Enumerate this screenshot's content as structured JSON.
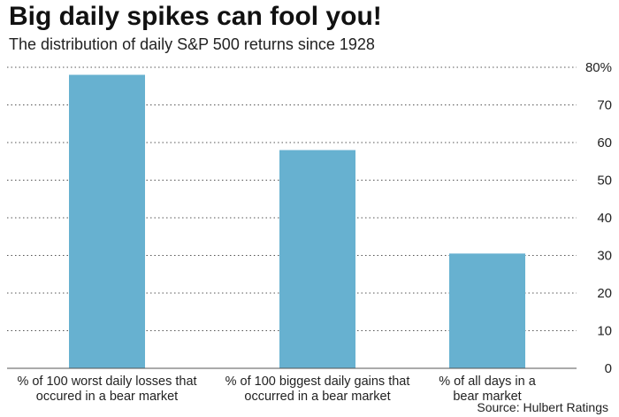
{
  "chart_data": {
    "type": "bar",
    "title": "Big daily spikes can fool you!",
    "subtitle": "The distribution of daily S&P 500 returns since 1928",
    "source": "Source: Hulbert Ratings",
    "categories": [
      [
        "% of 100 worst daily losses that",
        "occured in a bear market"
      ],
      [
        "% of 100 biggest daily gains that",
        "occurred in a bear market"
      ],
      [
        "% of all days in a",
        "bear market"
      ]
    ],
    "values": [
      78,
      58,
      30.5
    ],
    "ylim": [
      0,
      80
    ],
    "yticks": [
      0,
      10,
      20,
      30,
      40,
      50,
      60,
      70,
      80
    ],
    "ytick_labels": [
      "0",
      "10",
      "20",
      "30",
      "40",
      "50",
      "60",
      "70",
      "80%"
    ],
    "y_axis_side": "right",
    "grid": "horizontal-dotted",
    "bar_color": "#67b1d0"
  }
}
